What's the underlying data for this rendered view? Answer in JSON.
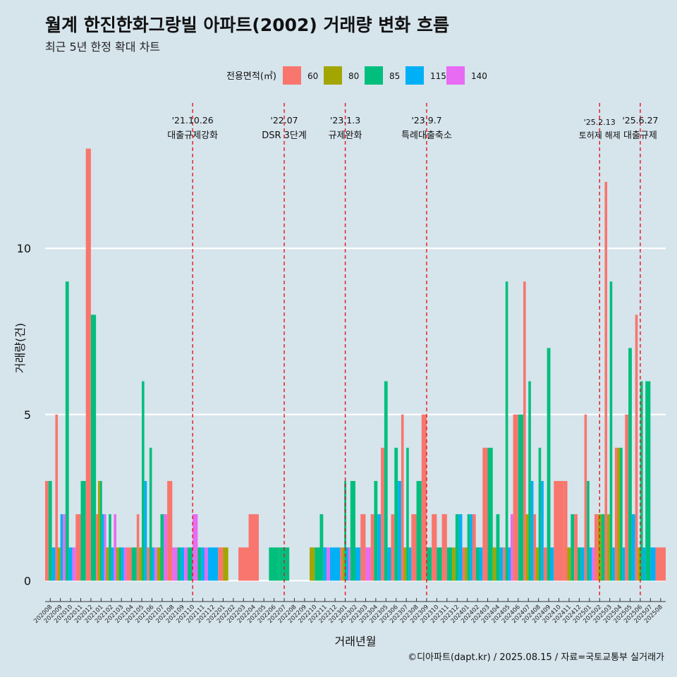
{
  "title": "월계 한진한화그랑빌 아파트(2002) 거래량 변화 흐름",
  "subtitle": "최근 5년 한정 확대 차트",
  "caption": "©디아파트(dapt.kr) / 2025.08.15 / 자료=국토교통부 실거래가",
  "colors": {
    "background": "#d6e4ec",
    "grid": "#ffffff",
    "event_line": "#e8141b",
    "series": [
      "#f8766d",
      "#a3a500",
      "#00bf7d",
      "#00b0f6",
      "#e76bf3"
    ]
  },
  "chart_data": {
    "type": "bar",
    "xlabel": "거래년월",
    "ylabel": "거래량(건)",
    "ylim": [
      -0.5,
      14.5
    ],
    "yticks": [
      0,
      5,
      10
    ],
    "grid": true,
    "legend": {
      "title": "전용면적(㎡)",
      "position": "top"
    },
    "categories": [
      "202008",
      "202009",
      "202010",
      "202011",
      "202012",
      "202101",
      "202102",
      "202103",
      "202104",
      "202105",
      "202106",
      "202107",
      "202108",
      "202109",
      "202110",
      "202111",
      "202112",
      "202201",
      "202202",
      "202203",
      "202204",
      "202205",
      "202206",
      "202207",
      "202208",
      "202209",
      "202210",
      "202211",
      "202212",
      "202301",
      "202302",
      "202303",
      "202304",
      "202305",
      "202306",
      "202307",
      "202308",
      "202309",
      "202310",
      "202311",
      "202312",
      "202401",
      "202402",
      "202403",
      "202404",
      "202405",
      "202406",
      "202407",
      "202408",
      "202409",
      "202410",
      "202411",
      "202412",
      "202501",
      "202502",
      "202503",
      "202504",
      "202505",
      "202506",
      "202507",
      "202508"
    ],
    "series": [
      {
        "name": "60",
        "values": [
          3,
          5,
          0,
          2,
          13,
          2,
          0,
          0,
          1,
          2,
          1,
          0,
          3,
          0,
          0,
          0,
          0,
          1,
          0,
          1,
          2,
          0,
          0,
          0,
          0,
          0,
          0,
          0,
          0,
          1,
          0,
          2,
          2,
          4,
          2,
          5,
          2,
          5,
          2,
          2,
          0,
          1,
          2,
          4,
          0,
          1,
          5,
          9,
          2,
          1,
          3,
          3,
          2,
          5,
          2,
          12,
          4,
          5,
          8,
          0,
          1
        ]
      },
      {
        "name": "80",
        "values": [
          0,
          1,
          0,
          0,
          0,
          3,
          1,
          1,
          0,
          1,
          0,
          1,
          0,
          0,
          0,
          0,
          0,
          1,
          0,
          0,
          0,
          0,
          0,
          0,
          0,
          0,
          1,
          0,
          0,
          1,
          0,
          0,
          0,
          0,
          0,
          1,
          0,
          0,
          0,
          0,
          1,
          1,
          0,
          0,
          1,
          0,
          0,
          2,
          1,
          0,
          0,
          1,
          0,
          0,
          2,
          2,
          4,
          0,
          1,
          0,
          0
        ]
      },
      {
        "name": "85",
        "values": [
          3,
          0,
          9,
          3,
          8,
          3,
          2,
          1,
          1,
          6,
          4,
          2,
          0,
          1,
          1,
          1,
          0,
          0,
          0,
          0,
          0,
          0,
          1,
          1,
          0,
          0,
          1,
          2,
          0,
          3,
          3,
          0,
          3,
          6,
          4,
          4,
          3,
          1,
          1,
          1,
          2,
          2,
          1,
          4,
          2,
          9,
          5,
          6,
          4,
          7,
          0,
          2,
          1,
          3,
          2,
          9,
          4,
          7,
          6,
          6,
          0
        ]
      },
      {
        "name": "115",
        "values": [
          1,
          2,
          1,
          0,
          0,
          2,
          1,
          1,
          0,
          3,
          1,
          0,
          0,
          1,
          0,
          1,
          1,
          0,
          0,
          0,
          0,
          0,
          0,
          0,
          0,
          0,
          0,
          1,
          1,
          1,
          1,
          0,
          2,
          1,
          3,
          1,
          0,
          0,
          0,
          0,
          2,
          2,
          1,
          0,
          1,
          1,
          0,
          3,
          3,
          1,
          0,
          0,
          1,
          1,
          0,
          1,
          1,
          2,
          1,
          1,
          0
        ]
      },
      {
        "name": "140",
        "values": [
          0,
          2,
          1,
          0,
          0,
          2,
          2,
          1,
          0,
          0,
          1,
          2,
          1,
          1,
          2,
          1,
          0,
          0,
          0,
          0,
          0,
          0,
          0,
          0,
          0,
          0,
          0,
          1,
          0,
          1,
          0,
          1,
          0,
          0,
          0,
          0,
          0,
          0,
          0,
          0,
          0,
          0,
          0,
          0,
          0,
          2,
          0,
          0,
          0,
          0,
          0,
          0,
          0,
          1,
          0,
          0,
          0,
          0,
          0,
          0,
          0
        ]
      }
    ],
    "events": [
      {
        "date": "'21.10.26",
        "label": "대출규제강화",
        "x": "202110"
      },
      {
        "date": "'22.07",
        "label": "DSR 3단계",
        "x": "202207"
      },
      {
        "date": "'23.1.3",
        "label": "규제완화",
        "x": "202301"
      },
      {
        "date": "'23.9.7",
        "label": "특례대출축소",
        "x": "202309"
      },
      {
        "date": "'25.2.13",
        "label": "토허제 해제",
        "x": "202502"
      },
      {
        "date": "'25.6.27",
        "label": "대출규제",
        "x": "202506"
      }
    ]
  }
}
